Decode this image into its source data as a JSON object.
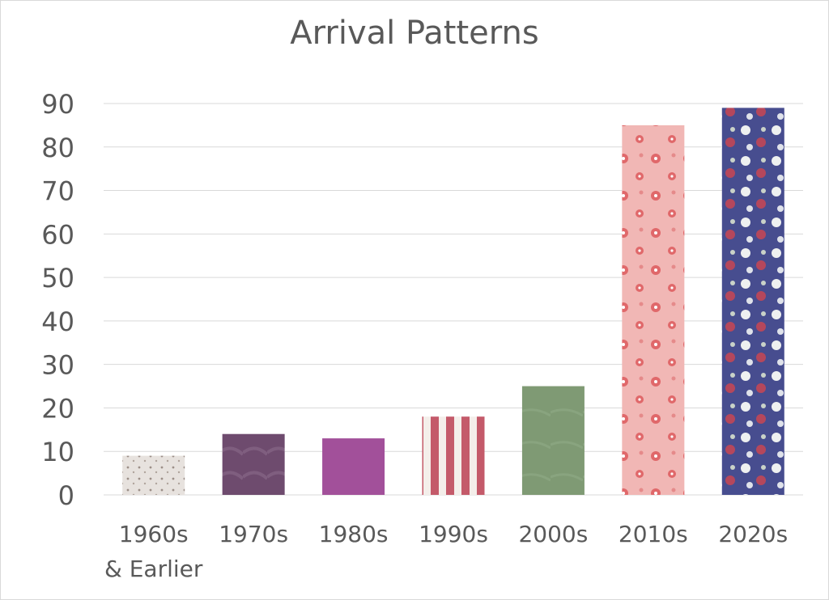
{
  "chart_data": {
    "type": "bar",
    "title": "Arrival Patterns",
    "categories": [
      "1960s|& Earlier",
      "1970s",
      "1980s",
      "1990s",
      "2000s",
      "2010s",
      "2020s"
    ],
    "values": [
      9,
      14,
      13,
      18,
      25,
      85,
      89
    ],
    "ylim": [
      0,
      90
    ],
    "yticks": [
      0,
      10,
      20,
      30,
      40,
      50,
      60,
      70,
      80,
      90
    ],
    "grid": true,
    "legend": "none",
    "bar_fills": [
      "lace-white",
      "mauve-satin",
      "purple",
      "red-white-stripe",
      "sage-green",
      "pink-floral",
      "navy-floral"
    ],
    "colors": {
      "text": "#595959",
      "grid": "#d9d9d9",
      "lace": "#e7e2de",
      "mauve": "#6e4b6e",
      "purple": "#a2509a",
      "stripe_red": "#c45a6a",
      "stripe_white": "#f4eeea",
      "sage": "#7f9a74",
      "pink": "#f1b7b5",
      "pink_flower": "#e0686a",
      "navy": "#474d8f",
      "navy_flower_white": "#eef0f0",
      "navy_flower_red": "#b5475c"
    }
  }
}
